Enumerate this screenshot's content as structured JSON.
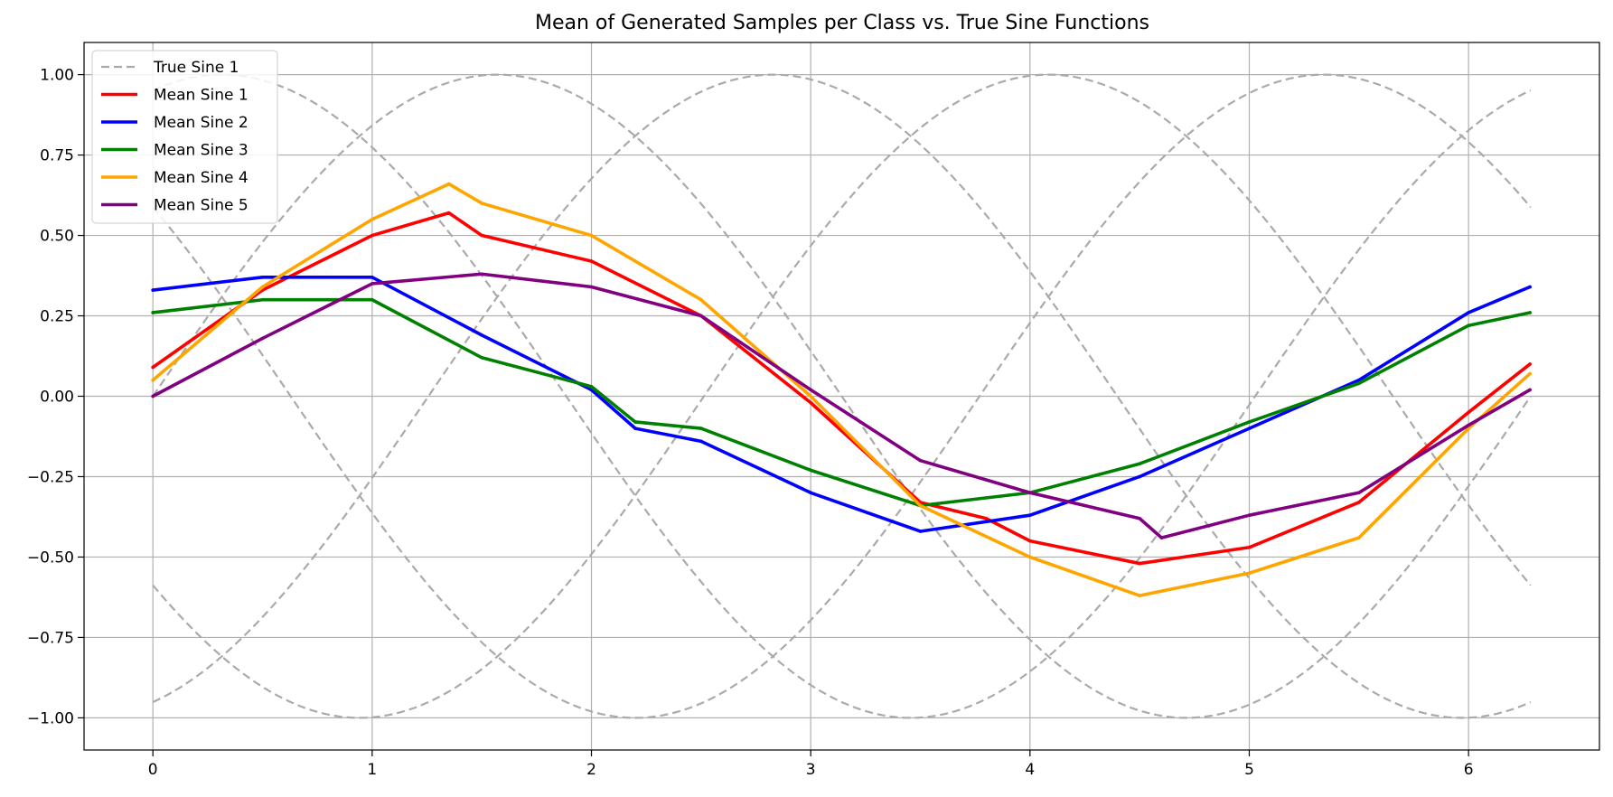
{
  "chart_data": {
    "type": "line",
    "title": "Mean of Generated Samples per Class vs. True Sine Functions",
    "xlabel": "",
    "ylabel": "",
    "xlim": [
      -0.314,
      6.597
    ],
    "ylim": [
      -1.1,
      1.1
    ],
    "xticks": [
      0,
      1,
      2,
      3,
      4,
      5,
      6
    ],
    "yticks": [
      1.0,
      0.75,
      0.5,
      0.25,
      0.0,
      -0.25,
      -0.5,
      -0.75,
      -1.0
    ],
    "xtick_labels": [
      "0",
      "1",
      "2",
      "3",
      "4",
      "5",
      "6"
    ],
    "ytick_labels": [
      "1.00",
      "0.75",
      "0.50",
      "0.25",
      "0.00",
      "−0.25",
      "−0.50",
      "−0.75",
      "−1.00"
    ],
    "grid": true,
    "legend_position": "upper-left",
    "true_sine": {
      "label": "True Sine 1",
      "color": "#aaaaaa",
      "style": "dashed",
      "x_range": [
        0,
        6.2832
      ],
      "phases": [
        0.0,
        1.2566,
        2.5133,
        3.7699,
        5.0265
      ]
    },
    "series": [
      {
        "name": "Mean Sine 1",
        "color": "#ff0000",
        "x": [
          0,
          0.5,
          1.0,
          1.35,
          1.5,
          2.0,
          2.5,
          3.0,
          3.5,
          3.8,
          4.0,
          4.5,
          5.0,
          5.5,
          6.0,
          6.28
        ],
        "y": [
          0.09,
          0.33,
          0.5,
          0.57,
          0.5,
          0.42,
          0.25,
          -0.02,
          -0.33,
          -0.38,
          -0.45,
          -0.52,
          -0.47,
          -0.33,
          -0.05,
          0.1
        ]
      },
      {
        "name": "Mean Sine 2",
        "color": "#0000ff",
        "x": [
          0,
          0.5,
          1.0,
          1.5,
          2.0,
          2.2,
          2.5,
          3.0,
          3.5,
          4.0,
          4.5,
          5.0,
          5.5,
          6.0,
          6.28
        ],
        "y": [
          0.33,
          0.37,
          0.37,
          0.19,
          0.02,
          -0.1,
          -0.14,
          -0.3,
          -0.42,
          -0.37,
          -0.25,
          -0.1,
          0.05,
          0.26,
          0.34
        ]
      },
      {
        "name": "Mean Sine 3",
        "color": "#008000",
        "x": [
          0,
          0.5,
          1.0,
          1.5,
          2.0,
          2.2,
          2.5,
          3.0,
          3.5,
          4.0,
          4.5,
          5.0,
          5.5,
          6.0,
          6.28
        ],
        "y": [
          0.26,
          0.3,
          0.3,
          0.12,
          0.03,
          -0.08,
          -0.1,
          -0.23,
          -0.34,
          -0.3,
          -0.21,
          -0.08,
          0.04,
          0.22,
          0.26
        ]
      },
      {
        "name": "Mean Sine 4",
        "color": "#ffa500",
        "x": [
          0,
          0.5,
          1.0,
          1.35,
          1.5,
          2.0,
          2.5,
          3.0,
          3.5,
          4.0,
          4.5,
          5.0,
          5.5,
          6.0,
          6.28
        ],
        "y": [
          0.05,
          0.34,
          0.55,
          0.66,
          0.6,
          0.5,
          0.3,
          0.0,
          -0.34,
          -0.5,
          -0.62,
          -0.55,
          -0.44,
          -0.1,
          0.07
        ]
      },
      {
        "name": "Mean Sine 5",
        "color": "#800080",
        "x": [
          0,
          0.5,
          1.0,
          1.5,
          2.0,
          2.5,
          3.0,
          3.5,
          4.0,
          4.5,
          4.6,
          5.0,
          5.5,
          6.0,
          6.28
        ],
        "y": [
          0.0,
          0.18,
          0.35,
          0.38,
          0.34,
          0.25,
          0.02,
          -0.2,
          -0.3,
          -0.38,
          -0.44,
          -0.37,
          -0.3,
          -0.09,
          0.02
        ]
      }
    ]
  }
}
